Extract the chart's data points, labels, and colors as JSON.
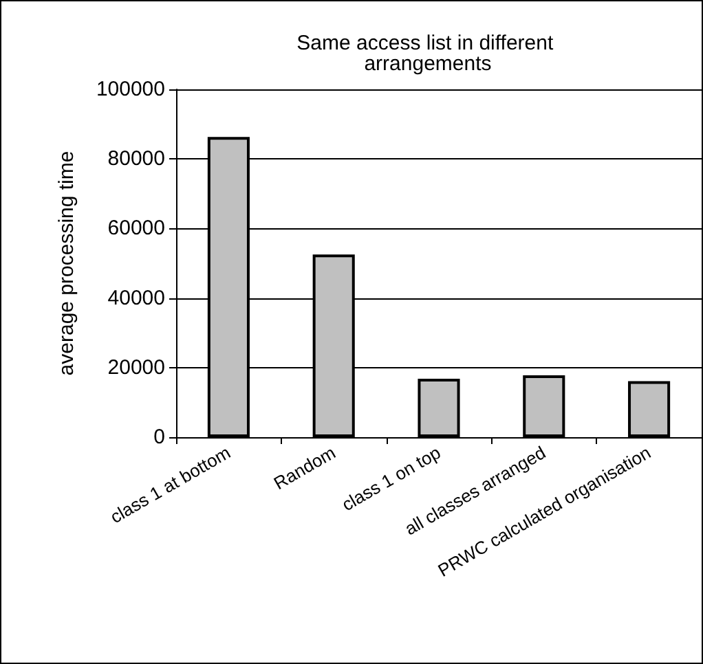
{
  "chart_data": {
    "type": "bar",
    "title": "Same access list in different arrangements",
    "ylabel": "average processing time",
    "categories": [
      "class 1 at bottom",
      "Random",
      "class 1 on top",
      "all classes arranged",
      "PRWC calculated organisation"
    ],
    "values": [
      86300,
      52500,
      16800,
      17800,
      16100
    ],
    "color": "#c0c0c0",
    "ylim": [
      0,
      100000
    ],
    "yticks": [
      0,
      20000,
      40000,
      60000,
      80000,
      100000
    ],
    "grid": "y"
  }
}
